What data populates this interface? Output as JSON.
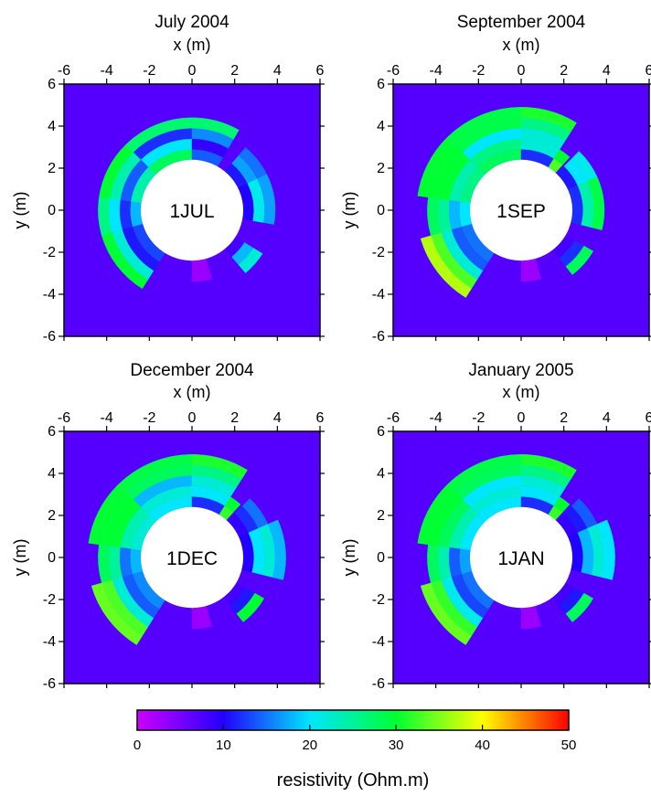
{
  "chart_data": {
    "type": "heatmap",
    "x_axis_label": "x (m)",
    "y_axis_label": "y (m)",
    "axis_range": [
      -6,
      6
    ],
    "ticks": [
      "-6",
      "-4",
      "-2",
      "0",
      "2",
      "4",
      "6"
    ],
    "panels": [
      {
        "title": "July 2004",
        "label": "1JUL",
        "sectors": [
          {
            "start": 90,
            "end": 135,
            "shells": [
              28,
              20,
              12,
              27
            ]
          },
          {
            "start": 135,
            "end": 172,
            "shells": [
              24,
              14,
              24,
              30
            ]
          },
          {
            "start": 172,
            "end": 196,
            "shells": [
              18,
              12,
              20,
              26
            ]
          },
          {
            "start": 196,
            "end": 238,
            "shells": [
              13,
              11,
              22,
              30
            ]
          },
          {
            "start": 60,
            "end": 90,
            "shells": [
              14,
              9,
              16,
              27
            ]
          },
          {
            "start": 26,
            "end": 50,
            "shells": [
              11,
              17,
              15
            ]
          },
          {
            "start": -10,
            "end": 26,
            "shells": [
              10,
              21,
              17
            ]
          },
          {
            "start": -50,
            "end": -32,
            "shells": [
              8,
              18,
              22
            ]
          },
          {
            "start": -90,
            "end": -74,
            "shells": [
              3,
              3
            ]
          }
        ]
      },
      {
        "title": "September 2004",
        "label": "1SEP",
        "sectors": [
          {
            "start": 90,
            "end": 135,
            "shells": [
              28,
              26,
              20,
              29,
              29
            ]
          },
          {
            "start": 135,
            "end": 172,
            "shells": [
              26,
              24,
              30,
              30,
              30
            ]
          },
          {
            "start": 172,
            "end": 196,
            "shells": [
              20,
              18,
              25,
              28
            ]
          },
          {
            "start": 196,
            "end": 238,
            "shells": [
              15,
              14,
              22,
              33,
              37
            ]
          },
          {
            "start": 58,
            "end": 90,
            "shells": [
              12,
              22,
              22,
              26,
              31
            ]
          },
          {
            "start": 48,
            "end": 58,
            "shells": [
              33,
              30
            ]
          },
          {
            "start": 24,
            "end": 46,
            "shells": [
              11,
              20,
              21
            ]
          },
          {
            "start": -14,
            "end": 24,
            "shells": [
              12,
              24,
              29
            ]
          },
          {
            "start": -52,
            "end": -30,
            "shells": [
              8,
              12,
              28
            ]
          },
          {
            "start": -90,
            "end": -74,
            "shells": [
              3,
              3
            ]
          }
        ]
      },
      {
        "title": "December 2004",
        "label": "1DEC",
        "sectors": [
          {
            "start": 90,
            "end": 135,
            "shells": [
              20,
              22,
              18,
              28,
              29
            ]
          },
          {
            "start": 135,
            "end": 172,
            "shells": [
              22,
              24,
              30,
              30,
              30
            ]
          },
          {
            "start": 172,
            "end": 196,
            "shells": [
              18,
              15,
              25,
              28
            ]
          },
          {
            "start": 196,
            "end": 238,
            "shells": [
              16,
              14,
              22,
              33,
              34
            ]
          },
          {
            "start": 58,
            "end": 90,
            "shells": [
              12,
              20,
              22,
              26,
              31
            ]
          },
          {
            "start": 48,
            "end": 58,
            "shells": [
              32,
              30
            ]
          },
          {
            "start": 24,
            "end": 46,
            "shells": [
              9,
              12,
              15
            ]
          },
          {
            "start": -14,
            "end": 24,
            "shells": [
              10,
              20,
              22,
              18
            ]
          },
          {
            "start": -52,
            "end": -30,
            "shells": [
              8,
              11,
              30
            ]
          },
          {
            "start": -90,
            "end": -74,
            "shells": [
              3,
              3
            ]
          }
        ]
      },
      {
        "title": "January 2005",
        "label": "1JAN",
        "sectors": [
          {
            "start": 90,
            "end": 135,
            "shells": [
              20,
              22,
              20,
              28,
              29
            ]
          },
          {
            "start": 135,
            "end": 172,
            "shells": [
              20,
              24,
              28,
              30,
              30
            ]
          },
          {
            "start": 172,
            "end": 196,
            "shells": [
              17,
              14,
              24,
              28
            ]
          },
          {
            "start": 196,
            "end": 238,
            "shells": [
              15,
              13,
              21,
              32,
              34
            ]
          },
          {
            "start": 58,
            "end": 90,
            "shells": [
              12,
              20,
              22,
              26,
              31
            ]
          },
          {
            "start": 48,
            "end": 58,
            "shells": [
              32,
              30
            ]
          },
          {
            "start": 24,
            "end": 46,
            "shells": [
              9,
              11,
              14
            ]
          },
          {
            "start": -14,
            "end": 24,
            "shells": [
              10,
              18,
              22,
              20
            ]
          },
          {
            "start": -52,
            "end": -30,
            "shells": [
              8,
              11,
              28
            ]
          },
          {
            "start": -90,
            "end": -74,
            "shells": [
              3,
              3
            ]
          }
        ]
      }
    ],
    "background_value": 7,
    "colorbar": {
      "label": "resistivity (Ohm.m)",
      "range": [
        0,
        50
      ],
      "ticks": [
        "0",
        "10",
        "20",
        "30",
        "40",
        "50"
      ],
      "stops": [
        "#cc00ff",
        "#2200ff",
        "#00e6ff",
        "#00ff33",
        "#ffff00",
        "#ff0000"
      ]
    }
  }
}
